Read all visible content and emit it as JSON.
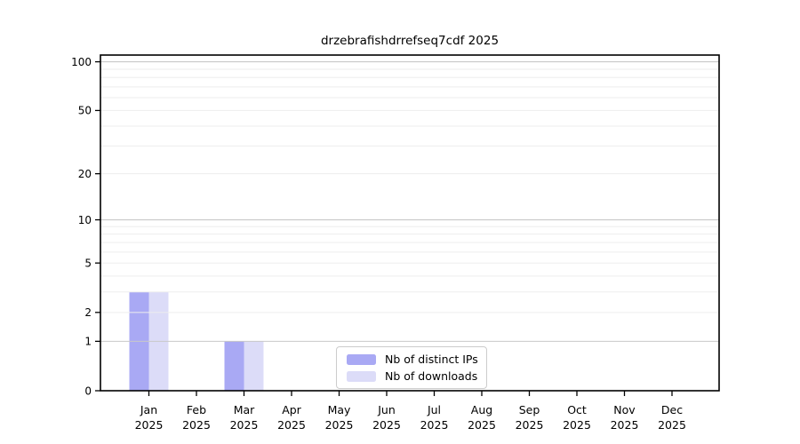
{
  "chart_data": {
    "type": "bar",
    "title": "drzebrafishdrrefseq7cdf 2025",
    "year": "2025",
    "categories": [
      "Jan",
      "Feb",
      "Mar",
      "Apr",
      "May",
      "Jun",
      "Jul",
      "Aug",
      "Sep",
      "Oct",
      "Nov",
      "Dec"
    ],
    "series": [
      {
        "name": "Nb of distinct IPs",
        "color": "#a9a9f4",
        "values": [
          3,
          0,
          1,
          0,
          0,
          0,
          0,
          0,
          0,
          0,
          0,
          0
        ]
      },
      {
        "name": "Nb of downloads",
        "color": "#dcdcf8",
        "values": [
          3,
          0,
          1,
          0,
          0,
          0,
          0,
          0,
          0,
          0,
          0,
          0
        ]
      }
    ],
    "xlabel": "",
    "ylabel": "",
    "yticks": [
      0,
      1,
      2,
      5,
      10,
      20,
      50,
      100
    ],
    "grid_major_values": [
      1,
      10,
      100
    ],
    "grid_minor_values": [
      2,
      3,
      4,
      5,
      6,
      7,
      8,
      9,
      20,
      30,
      40,
      50,
      60,
      70,
      80,
      90
    ],
    "scale": "log1p",
    "ylim": [
      0,
      110
    ],
    "grid": "horizontal",
    "legend_position": "lower center"
  },
  "colors": {
    "background": "#ffffff",
    "spine": "#000000",
    "grid_major": "#c9c9c9",
    "grid_minor": "#ededed",
    "tick_label": "#000000",
    "legend_border": "#cccccc",
    "legend_background": "#ffffff"
  }
}
